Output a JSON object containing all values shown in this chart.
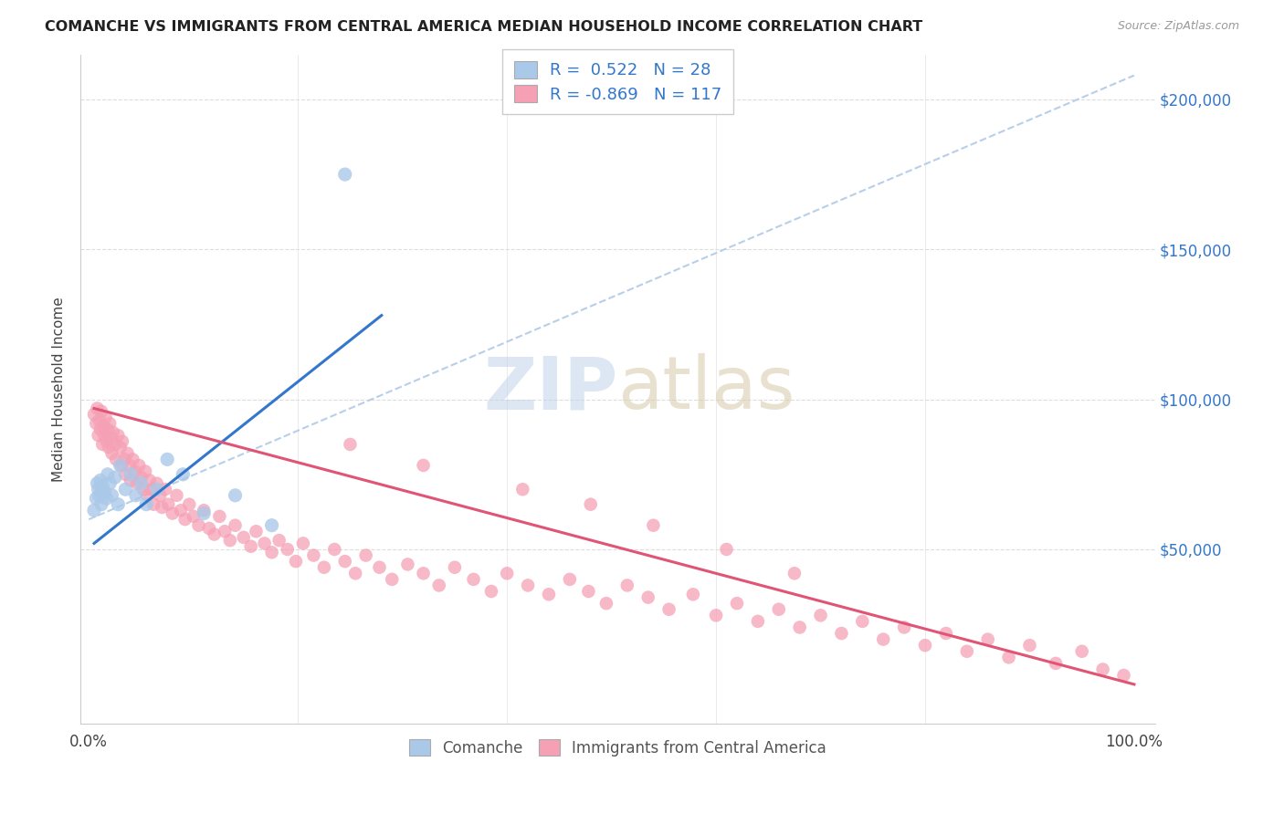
{
  "title": "COMANCHE VS IMMIGRANTS FROM CENTRAL AMERICA MEDIAN HOUSEHOLD INCOME CORRELATION CHART",
  "source": "Source: ZipAtlas.com",
  "ylabel": "Median Household Income",
  "legend_label1": "Comanche",
  "legend_label2": "Immigrants from Central America",
  "R1": "0.522",
  "N1": "28",
  "R2": "-0.869",
  "N2": "117",
  "color_blue": "#aac8e8",
  "color_pink": "#f5a0b5",
  "color_blue_line": "#3377cc",
  "color_pink_line": "#e05575",
  "color_dashed": "#b8cfe8",
  "background_color": "#ffffff",
  "ylim_min": -8000,
  "ylim_max": 215000,
  "xlim_min": -0.008,
  "xlim_max": 1.02,
  "blue_line_x": [
    0.005,
    0.28
  ],
  "blue_line_y": [
    52000,
    128000
  ],
  "pink_line_x": [
    0.005,
    1.0
  ],
  "pink_line_y": [
    97000,
    5000
  ],
  "dashed_line_x": [
    0.0,
    1.0
  ],
  "dashed_line_y": [
    60000,
    208000
  ],
  "blue_x": [
    0.005,
    0.007,
    0.008,
    0.009,
    0.01,
    0.011,
    0.012,
    0.013,
    0.015,
    0.017,
    0.018,
    0.02,
    0.022,
    0.025,
    0.028,
    0.03,
    0.035,
    0.04,
    0.045,
    0.05,
    0.055,
    0.065,
    0.075,
    0.09,
    0.11,
    0.14,
    0.175,
    0.245
  ],
  "blue_y": [
    63000,
    67000,
    72000,
    70000,
    68000,
    73000,
    65000,
    71000,
    69000,
    67000,
    75000,
    72000,
    68000,
    74000,
    65000,
    78000,
    70000,
    75000,
    68000,
    72000,
    65000,
    70000,
    80000,
    75000,
    62000,
    68000,
    58000,
    175000
  ],
  "pink_x": [
    0.005,
    0.007,
    0.008,
    0.009,
    0.01,
    0.011,
    0.012,
    0.013,
    0.014,
    0.015,
    0.016,
    0.017,
    0.018,
    0.019,
    0.02,
    0.021,
    0.022,
    0.023,
    0.025,
    0.026,
    0.028,
    0.03,
    0.031,
    0.032,
    0.034,
    0.035,
    0.037,
    0.039,
    0.04,
    0.042,
    0.044,
    0.046,
    0.048,
    0.05,
    0.052,
    0.054,
    0.056,
    0.058,
    0.06,
    0.062,
    0.065,
    0.068,
    0.07,
    0.073,
    0.076,
    0.08,
    0.084,
    0.088,
    0.092,
    0.096,
    0.1,
    0.105,
    0.11,
    0.115,
    0.12,
    0.125,
    0.13,
    0.135,
    0.14,
    0.148,
    0.155,
    0.16,
    0.168,
    0.175,
    0.182,
    0.19,
    0.198,
    0.205,
    0.215,
    0.225,
    0.235,
    0.245,
    0.255,
    0.265,
    0.278,
    0.29,
    0.305,
    0.32,
    0.335,
    0.35,
    0.368,
    0.385,
    0.4,
    0.42,
    0.44,
    0.46,
    0.478,
    0.495,
    0.515,
    0.535,
    0.555,
    0.578,
    0.6,
    0.62,
    0.64,
    0.66,
    0.68,
    0.7,
    0.72,
    0.74,
    0.76,
    0.78,
    0.8,
    0.82,
    0.84,
    0.86,
    0.88,
    0.9,
    0.925,
    0.95,
    0.97,
    0.99,
    0.25,
    0.32,
    0.415,
    0.48,
    0.54,
    0.61,
    0.675
  ],
  "pink_y": [
    95000,
    92000,
    97000,
    88000,
    93000,
    90000,
    96000,
    85000,
    91000,
    88000,
    94000,
    86000,
    90000,
    84000,
    92000,
    87000,
    82000,
    89000,
    85000,
    80000,
    88000,
    84000,
    78000,
    86000,
    80000,
    75000,
    82000,
    78000,
    73000,
    80000,
    76000,
    72000,
    78000,
    74000,
    70000,
    76000,
    68000,
    73000,
    70000,
    65000,
    72000,
    68000,
    64000,
    70000,
    65000,
    62000,
    68000,
    63000,
    60000,
    65000,
    61000,
    58000,
    63000,
    57000,
    55000,
    61000,
    56000,
    53000,
    58000,
    54000,
    51000,
    56000,
    52000,
    49000,
    53000,
    50000,
    46000,
    52000,
    48000,
    44000,
    50000,
    46000,
    42000,
    48000,
    44000,
    40000,
    45000,
    42000,
    38000,
    44000,
    40000,
    36000,
    42000,
    38000,
    35000,
    40000,
    36000,
    32000,
    38000,
    34000,
    30000,
    35000,
    28000,
    32000,
    26000,
    30000,
    24000,
    28000,
    22000,
    26000,
    20000,
    24000,
    18000,
    22000,
    16000,
    20000,
    14000,
    18000,
    12000,
    16000,
    10000,
    8000,
    85000,
    78000,
    70000,
    65000,
    58000,
    50000,
    42000
  ]
}
